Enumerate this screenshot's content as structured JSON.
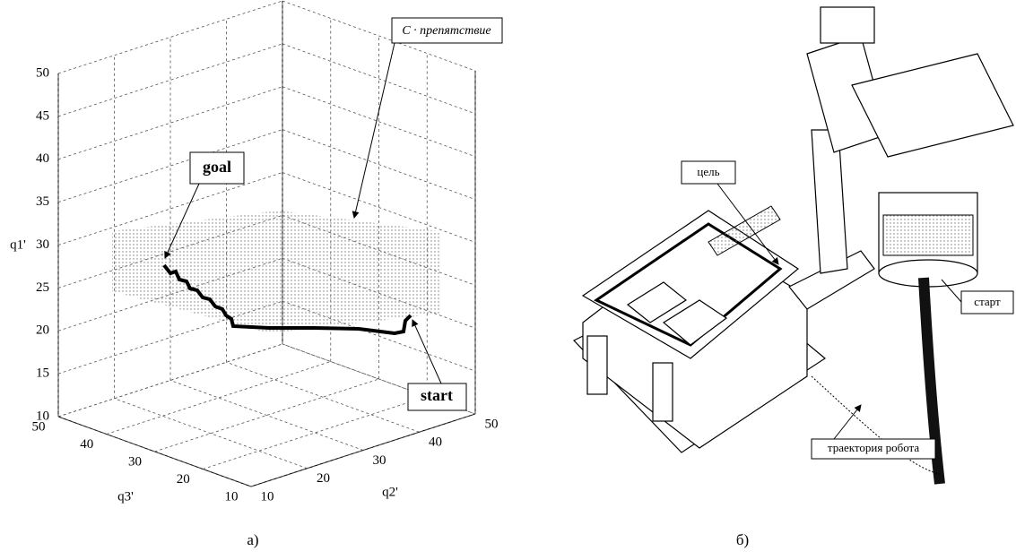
{
  "panel_a": {
    "label": "а)",
    "axes": {
      "z_label": "q1'",
      "x_label": "q2'",
      "y_label": "q3'",
      "z_ticks": [
        "10",
        "15",
        "20",
        "25",
        "30",
        "35",
        "40",
        "45",
        "50"
      ],
      "x_ticks": [
        "10",
        "20",
        "30",
        "40",
        "50"
      ],
      "y_ticks": [
        "10",
        "20",
        "30",
        "40",
        "50"
      ]
    },
    "annotations": {
      "goal": "goal",
      "start": "start",
      "obstacle": "C · препятствие"
    }
  },
  "panel_b": {
    "label": "б)",
    "annotations": {
      "goal": "цель",
      "start": "старт",
      "trajectory": "траектория робота"
    }
  }
}
